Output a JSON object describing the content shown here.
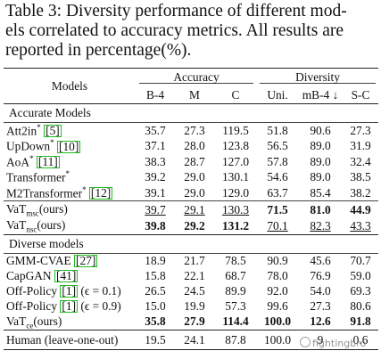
{
  "caption": {
    "lines": [
      "Table 3: Diversity performance of different mod-",
      "els correlated to accuracy metrics. All results are",
      "reported in percentage(%)."
    ]
  },
  "headers": {
    "models": "Models",
    "accuracy": "Accuracy",
    "diversity": "Diversity",
    "cols": [
      "B-4",
      "M",
      "C",
      "Uni.",
      "mB-4 ↓",
      "S-C"
    ]
  },
  "sections": {
    "accurate": "Accurate Models",
    "diverse": "Diverse models"
  },
  "accurate_rows": [
    {
      "name": "Att2in",
      "sup": "*",
      "cite": "5",
      "vals": [
        "35.7",
        "27.3",
        "119.5",
        "51.8",
        "90.6",
        "27.3"
      ]
    },
    {
      "name": "UpDown",
      "sup": "*",
      "cite": "10",
      "vals": [
        "37.1",
        "28.0",
        "123.8",
        "56.5",
        "89.0",
        "31.9"
      ]
    },
    {
      "name": "AoA",
      "sup": "*",
      "cite": "11",
      "vals": [
        "38.3",
        "28.7",
        "127.0",
        "57.8",
        "89.0",
        "32.4"
      ]
    },
    {
      "name": "Transformer",
      "sup": "*",
      "cite": "",
      "vals": [
        "39.2",
        "29.0",
        "130.1",
        "54.6",
        "89.0",
        "38.5"
      ]
    },
    {
      "name": "M2Transformer",
      "sup": "*",
      "cite": "12",
      "vals": [
        "39.1",
        "29.0",
        "129.0",
        "63.7",
        "85.4",
        "38.2"
      ]
    }
  ],
  "vat_rows": [
    {
      "name": "VaT",
      "sub": "msc",
      "suffix": "(ours)",
      "vals": [
        "39.7",
        "29.1",
        "130.3",
        "71.5",
        "81.0",
        "44.9"
      ]
    },
    {
      "name": "VaT",
      "sub": "nsc",
      "suffix": "(ours)",
      "vals": [
        "39.8",
        "29.2",
        "131.2",
        "70.1",
        "82.3",
        "43.3"
      ]
    }
  ],
  "diverse_rows": [
    {
      "name": "GMM-CVAE",
      "cite": "27",
      "extra": "",
      "vals": [
        "18.9",
        "21.7",
        "78.5",
        "90.9",
        "45.6",
        "70.7"
      ]
    },
    {
      "name": "CapGAN",
      "cite": "41",
      "extra": "",
      "vals": [
        "15.8",
        "22.1",
        "68.7",
        "78.0",
        "76.9",
        "59.0"
      ]
    },
    {
      "name": "Off-Policy",
      "cite": "1",
      "extra": "(ϵ = 0.1)",
      "vals": [
        "26.5",
        "24.5",
        "89.9",
        "92.0",
        "54.0",
        "69.3"
      ]
    },
    {
      "name": "Off-Policy",
      "cite": "1",
      "extra": "(ϵ = 0.9)",
      "vals": [
        "15.0",
        "19.9",
        "57.3",
        "99.6",
        "27.3",
        "80.6"
      ]
    },
    {
      "name": "VaT",
      "sub": "ce",
      "suffix": "(ours)",
      "vals": [
        "35.8",
        "27.9",
        "114.4",
        "100.0",
        "12.6",
        "91.8"
      ]
    }
  ],
  "human_row": {
    "name": "Human (leave-one-out)",
    "vals": [
      "19.5",
      "24.1",
      "87.8",
      "100.0",
      "9",
      "0.6"
    ]
  },
  "watermark": "fightingbro"
}
